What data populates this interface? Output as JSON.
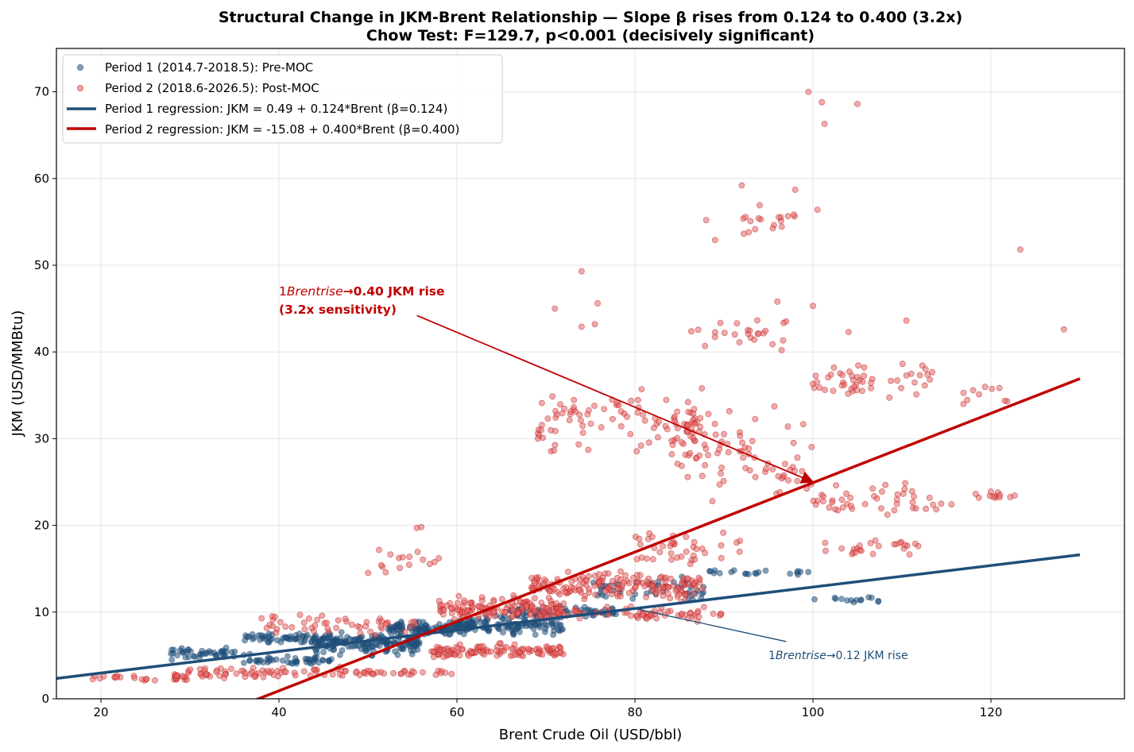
{
  "chart_data": {
    "type": "scatter",
    "title": "Structural Change in JKM-Brent Relationship — Slope β rises from 0.124 to 0.400 (3.2x)",
    "subtitle": "Chow Test: F=129.7, p<0.001 (decisively significant)",
    "xlabel": "Brent Crude Oil (USD/bbl)",
    "ylabel": "JKM (USD/MMBtu)",
    "xlim": [
      15,
      135
    ],
    "ylim": [
      0,
      75
    ],
    "xticks": [
      20,
      40,
      60,
      80,
      100,
      120
    ],
    "yticks": [
      0,
      10,
      20,
      30,
      40,
      50,
      60,
      70
    ],
    "grid": true,
    "legend_position": "top-left",
    "colors": {
      "period1": "#1f4e79",
      "period2": "#c00000",
      "period2_marker": "#e06666"
    },
    "series": [
      {
        "name": "Period 1 (2014.7-2018.5): Pre-MOC",
        "kind": "scatter",
        "clusters": [
          {
            "x_range": [
              27,
              37
            ],
            "y_center": 5.2,
            "y_spread": 0.9,
            "count": 45
          },
          {
            "x_range": [
              36,
              46
            ],
            "y_center": 7.0,
            "y_spread": 0.7,
            "count": 60
          },
          {
            "x_range": [
              36,
              46
            ],
            "y_center": 4.4,
            "y_spread": 0.6,
            "count": 45
          },
          {
            "x_range": [
              44,
              56
            ],
            "y_center": 6.4,
            "y_spread": 1.6,
            "count": 160
          },
          {
            "x_range": [
              52,
              62
            ],
            "y_center": 8.2,
            "y_spread": 1.0,
            "count": 110
          },
          {
            "x_range": [
              60,
              72
            ],
            "y_center": 8.5,
            "y_spread": 1.5,
            "count": 110
          },
          {
            "x_range": [
              66,
              78
            ],
            "y_center": 10.0,
            "y_spread": 0.8,
            "count": 60
          },
          {
            "x_range": [
              75,
              88
            ],
            "y_center": 12.5,
            "y_spread": 2.0,
            "count": 50
          },
          {
            "x_range": [
              88,
              100
            ],
            "y_center": 14.5,
            "y_spread": 0.4,
            "count": 20
          },
          {
            "x_range": [
              100,
              108
            ],
            "y_center": 11.5,
            "y_spread": 0.9,
            "count": 14
          }
        ]
      },
      {
        "name": "Period 2 (2018.6-2026.5): Post-MOC",
        "kind": "scatter",
        "clusters": [
          {
            "x_range": [
              19,
              30
            ],
            "y_center": 2.3,
            "y_spread": 0.5,
            "count": 25
          },
          {
            "x_range": [
              28,
              48
            ],
            "y_center": 3.0,
            "y_spread": 1.0,
            "count": 70
          },
          {
            "x_range": [
              48,
              60
            ],
            "y_center": 3.0,
            "y_spread": 0.4,
            "count": 30
          },
          {
            "x_range": [
              38,
              56
            ],
            "y_center": 8.5,
            "y_spread": 1.6,
            "count": 50
          },
          {
            "x_range": [
              50,
              58
            ],
            "y_center": 16.0,
            "y_spread": 2.5,
            "count": 14
          },
          {
            "x_range": [
              57,
              72
            ],
            "y_center": 5.5,
            "y_spread": 1.0,
            "count": 120
          },
          {
            "x_range": [
              58,
              72
            ],
            "y_center": 10.5,
            "y_spread": 1.8,
            "count": 140
          },
          {
            "x_range": [
              68,
              88
            ],
            "y_center": 13.0,
            "y_spread": 2.2,
            "count": 170
          },
          {
            "x_range": [
              70,
              90
            ],
            "y_center": 9.8,
            "y_spread": 1.0,
            "count": 70
          },
          {
            "x_range": [
              80,
              92
            ],
            "y_center": 17.5,
            "y_spread": 3.0,
            "count": 40
          },
          {
            "x_range": [
              69,
              88
            ],
            "y_center": 32.0,
            "y_spread": 4.5,
            "count": 100
          },
          {
            "x_range": [
              84,
              100
            ],
            "y_center": 28.0,
            "y_spread": 7.0,
            "count": 80
          },
          {
            "x_range": [
              86,
              98
            ],
            "y_center": 42.0,
            "y_spread": 3.0,
            "count": 25
          },
          {
            "x_range": [
              92,
              98
            ],
            "y_center": 55.0,
            "y_spread": 2.5,
            "count": 18
          },
          {
            "x_range": [
              100,
              114
            ],
            "y_center": 37.0,
            "y_spread": 2.5,
            "count": 50
          },
          {
            "x_range": [
              100,
              116
            ],
            "y_center": 23.0,
            "y_spread": 2.5,
            "count": 45
          },
          {
            "x_range": [
              100,
              112
            ],
            "y_center": 17.5,
            "y_spread": 1.5,
            "count": 25
          },
          {
            "x_range": [
              118,
              124
            ],
            "y_center": 23.5,
            "y_spread": 0.8,
            "count": 12
          },
          {
            "x_range": [
              116,
              122
            ],
            "y_center": 35.0,
            "y_spread": 1.8,
            "count": 10
          }
        ],
        "outliers": [
          [
            99.5,
            70.0
          ],
          [
            101.0,
            68.8
          ],
          [
            105.0,
            68.6
          ],
          [
            101.3,
            66.3
          ],
          [
            123.3,
            51.8
          ],
          [
            128.2,
            42.6
          ],
          [
            74.0,
            49.3
          ],
          [
            88.0,
            55.2
          ],
          [
            89.0,
            52.9
          ],
          [
            100.5,
            56.4
          ],
          [
            98.0,
            58.7
          ],
          [
            92.0,
            59.2
          ],
          [
            74.0,
            42.9
          ],
          [
            75.5,
            43.2
          ],
          [
            71.0,
            45.0
          ],
          [
            75.8,
            45.6
          ],
          [
            110.5,
            43.6
          ],
          [
            104.0,
            42.3
          ],
          [
            96.0,
            45.8
          ],
          [
            100.0,
            45.3
          ],
          [
            56.0,
            19.8
          ],
          [
            55.5,
            19.7
          ],
          [
            52.0,
            14.6
          ],
          [
            51.5,
            15.4
          ]
        ]
      },
      {
        "name": "Period 1 regression: JKM = 0.49 + 0.124*Brent (β=0.124)",
        "kind": "line",
        "intercept": 0.49,
        "slope": 0.124,
        "x_range": [
          15,
          130
        ]
      },
      {
        "name": "Period 2 regression: JKM = -15.08 + 0.400*Brent (β=0.400)",
        "kind": "line",
        "intercept": -15.08,
        "slope": 0.4,
        "x_range": [
          15,
          130
        ]
      }
    ],
    "annotations": [
      {
        "text_line1_prefix": "1",
        "text_line1_italic": "Brentrise",
        "text_line1_suffix": "→0.40 JKM rise",
        "text_line2": "(3.2x sensitivity)",
        "text_at": [
          40,
          46.5
        ],
        "arrow_from": [
          55.5,
          44.2
        ],
        "arrow_to": [
          100,
          25
        ]
      },
      {
        "text_prefix": "1",
        "text_italic": "Brentrise",
        "text_suffix": "→0.12 JKM rise",
        "text_at": [
          95,
          4.6
        ],
        "arrow_from": [
          97,
          6.6
        ],
        "arrow_to": [
          80,
          10.4
        ]
      }
    ]
  }
}
